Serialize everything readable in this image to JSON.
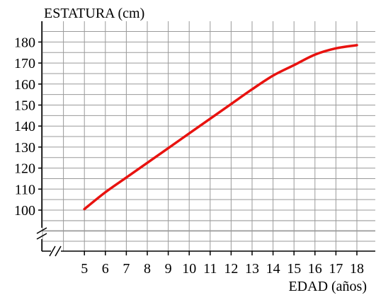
{
  "chart_data": {
    "type": "line",
    "ylabel": "ESTATURA (cm)",
    "xlabel": "EDAD (años)",
    "x_ticks": [
      5,
      6,
      7,
      8,
      9,
      10,
      11,
      12,
      13,
      14,
      15,
      16,
      17,
      18
    ],
    "y_ticks": [
      100,
      110,
      120,
      130,
      140,
      150,
      160,
      170,
      180
    ],
    "xlim": [
      3,
      19
    ],
    "ylim": [
      100,
      190
    ],
    "y_axis_break": true,
    "x_axis_break": true,
    "grid": true,
    "series": [
      {
        "color": "#e8120f",
        "x": [
          5,
          6,
          7,
          8,
          9,
          10,
          11,
          12,
          13,
          14,
          15,
          16,
          17,
          18
        ],
        "y": [
          100.5,
          108.5,
          115.5,
          122.5,
          129.5,
          136.5,
          143.5,
          150.5,
          157.5,
          164,
          169,
          174,
          177,
          178.5
        ]
      }
    ]
  }
}
